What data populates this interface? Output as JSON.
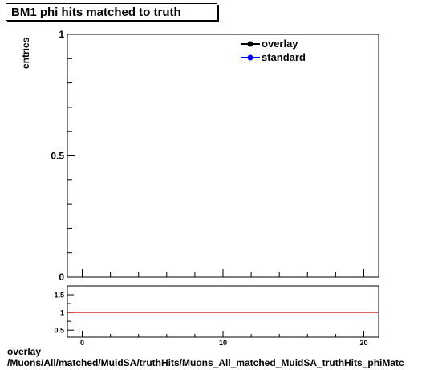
{
  "title": "BM1 phi hits matched to truth",
  "footer": {
    "line1": "overlay",
    "line2": "/Muons/All/matched/MuidSA/truthHits/Muons_All_matched_MuidSA_truthHits_phiMatc"
  },
  "colors": {
    "overlay": "#000000",
    "standard": "#0000ff",
    "ratio_line": "#cc0000"
  },
  "chart_data": [
    {
      "type": "line",
      "panel": "main",
      "title": "BM1 phi hits matched to truth",
      "xlabel": "",
      "ylabel": "entries",
      "xlim": [
        0,
        20
      ],
      "ylim": [
        0,
        1
      ],
      "yticks": [
        {
          "value": 0,
          "label": "0"
        },
        {
          "value": 0.5,
          "label": "0.5"
        },
        {
          "value": 1,
          "label": "1"
        }
      ],
      "legend": {
        "placement": "top-right",
        "entries": [
          {
            "label": "overlay",
            "color": "#000000"
          },
          {
            "label": "standard",
            "color": "#0000ff"
          }
        ]
      },
      "series": [
        {
          "name": "overlay",
          "x": [],
          "y": []
        },
        {
          "name": "standard",
          "x": [],
          "y": []
        }
      ]
    },
    {
      "type": "line",
      "panel": "ratio",
      "xlim": [
        0,
        20
      ],
      "ylim": [
        0.3,
        1.75
      ],
      "xticks": [
        {
          "value": 0,
          "label": "0"
        },
        {
          "value": 10,
          "label": "10"
        },
        {
          "value": 20,
          "label": "20"
        }
      ],
      "yticks": [
        {
          "value": 0.5,
          "label": "0.5"
        },
        {
          "value": 1,
          "label": "1"
        },
        {
          "value": 1.5,
          "label": "1.5"
        }
      ],
      "reference_line": 1,
      "series": []
    }
  ]
}
